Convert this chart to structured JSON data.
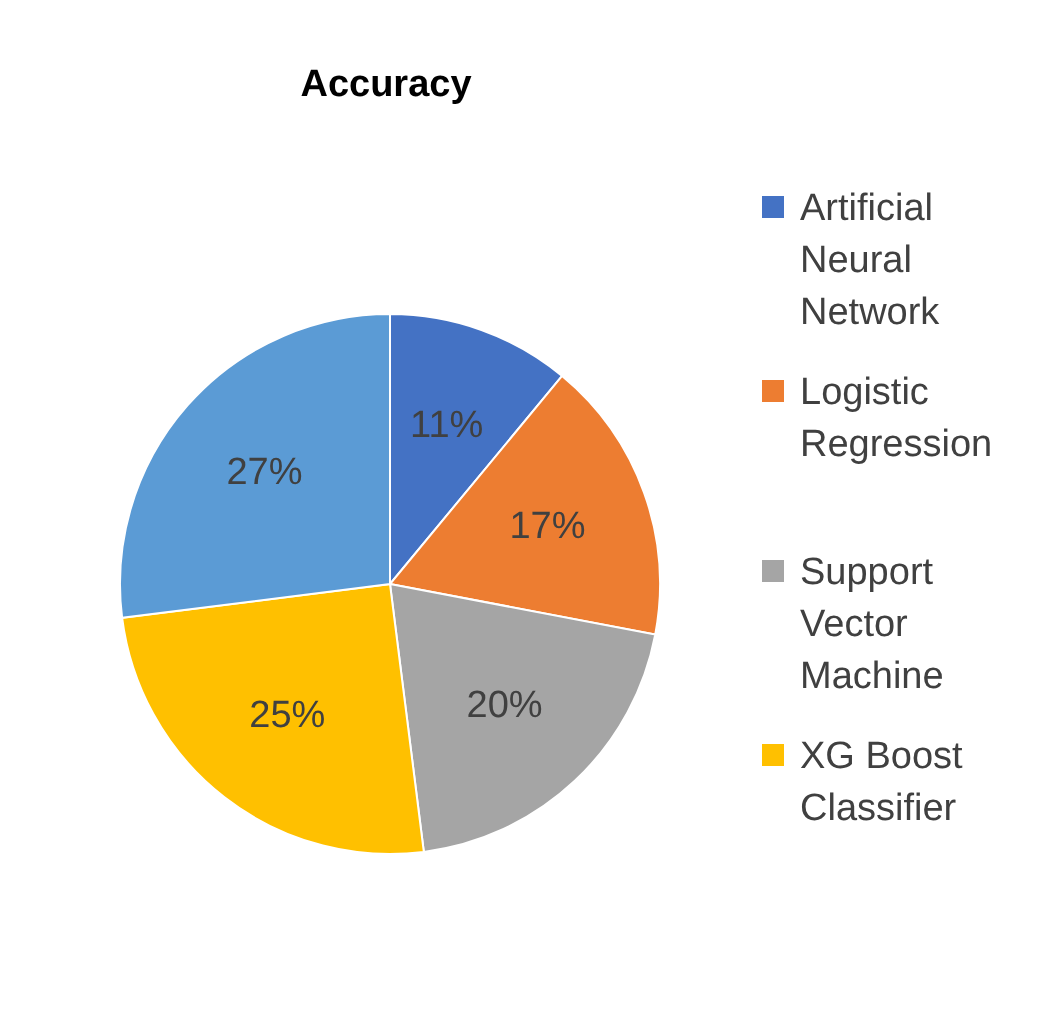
{
  "chart_data": {
    "type": "pie",
    "title": "Accuracy",
    "categories": [
      "Artificial Neural Network",
      "Logistic Regression",
      "Support Vector Machine",
      "XG Boost Classifier",
      null
    ],
    "values": [
      11,
      17,
      20,
      25,
      27
    ],
    "colors": [
      "#4472c4",
      "#ed7d31",
      "#a5a5a5",
      "#ffc000",
      "#5b9bd5"
    ],
    "value_labels": [
      "11%",
      "17%",
      "20%",
      "25%",
      "27%"
    ],
    "legend": "right"
  }
}
